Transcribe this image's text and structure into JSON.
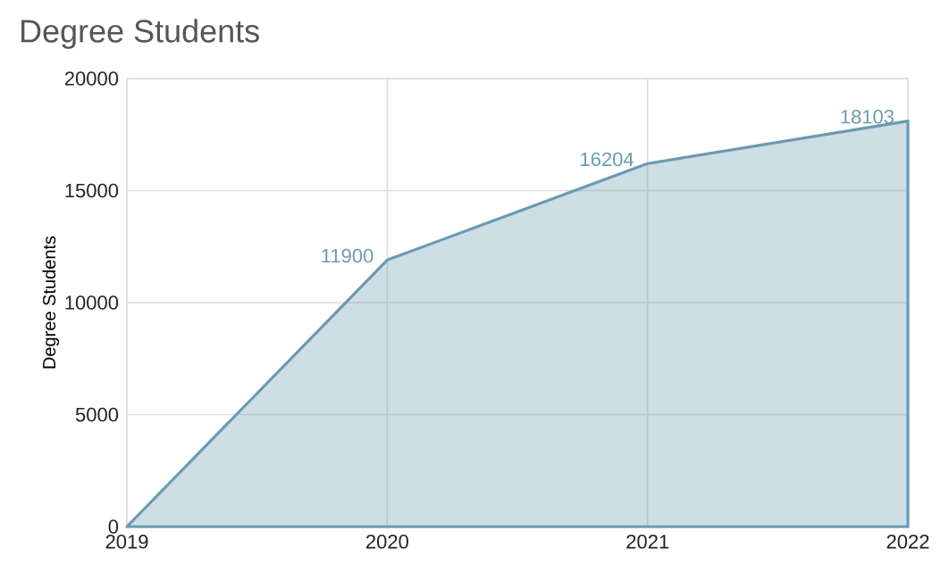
{
  "chart_data": {
    "type": "area",
    "title": "Degree Students",
    "ylabel": "Degree Students",
    "x": [
      2019,
      2020,
      2021,
      2022
    ],
    "series": [
      {
        "color": "#6a9bb0",
        "values": [
          0,
          11900,
          16204,
          18103
        ],
        "value_labels": [
          null,
          "11900",
          "16204",
          "18103"
        ]
      }
    ],
    "xlim": [
      2019,
      2022
    ],
    "xticks": [
      2019,
      2020,
      2021,
      2022
    ],
    "ylim": [
      0,
      20000
    ],
    "yticks": [
      0,
      5000,
      10000,
      15000,
      20000
    ],
    "grid": true
  }
}
